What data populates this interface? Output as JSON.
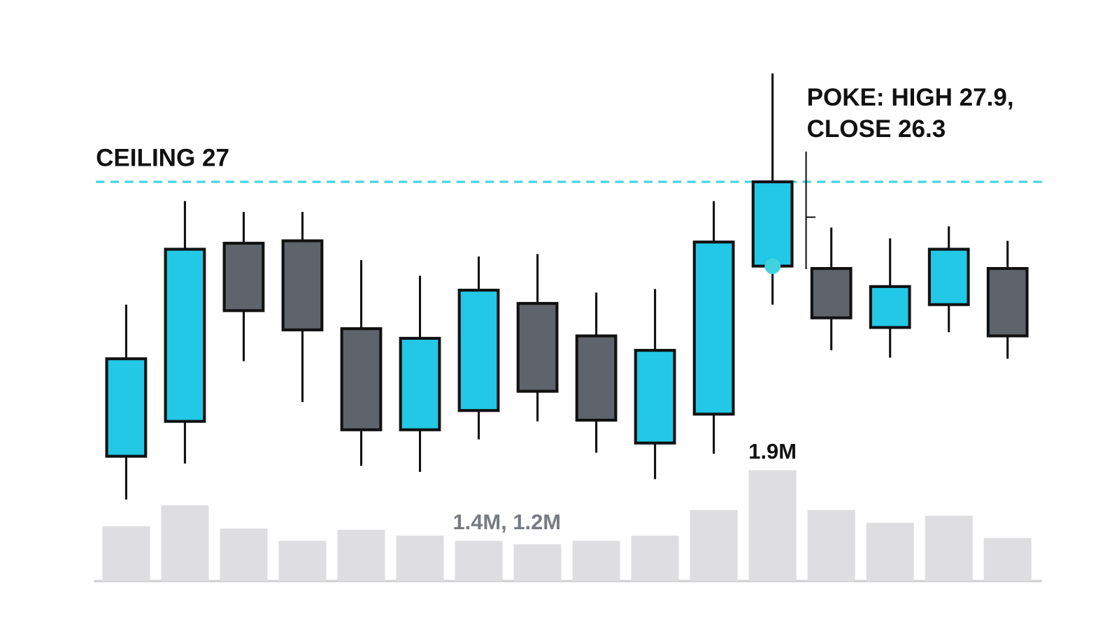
{
  "chart_data": {
    "type": "candlestick",
    "ylim": [
      24,
      28
    ],
    "open": [
      24.72,
      25.01,
      26.49,
      26.51,
      25.78,
      24.94,
      25.1,
      25.99,
      25.72,
      24.83,
      25.07,
      27.0,
      26.28,
      25.79,
      25.98,
      26.28
    ],
    "high": [
      25.98,
      26.84,
      26.75,
      26.75,
      26.35,
      26.22,
      26.38,
      26.4,
      26.08,
      26.11,
      26.84,
      27.9,
      26.62,
      26.53,
      26.63,
      26.51
    ],
    "low": [
      24.36,
      24.66,
      25.51,
      25.17,
      24.64,
      24.59,
      24.86,
      25.01,
      24.75,
      24.53,
      24.74,
      25.98,
      25.6,
      25.54,
      25.75,
      25.53
    ],
    "close": [
      25.53,
      26.44,
      25.93,
      25.77,
      24.94,
      25.7,
      26.1,
      25.26,
      25.02,
      25.6,
      26.5,
      26.3,
      25.87,
      26.13,
      26.44,
      25.72
    ],
    "colors": [
      "#22c8e5",
      "#22c8e5",
      "#5f636b",
      "#5f636b",
      "#5f636b",
      "#22c8e5",
      "#22c8e5",
      "#5f636b",
      "#5f636b",
      "#22c8e5",
      "#22c8e5",
      "#22c8e5",
      "#5f636b",
      "#22c8e5",
      "#22c8e5",
      "#5f636b"
    ],
    "ceiling": {
      "value": 27,
      "label": "CEILING 27",
      "color": "#3fd3e0"
    },
    "annotation": {
      "lines": [
        "POKE: HIGH 27.9,",
        "CLOSE 26.3"
      ],
      "candle": 11
    },
    "volume": {
      "ylim": [
        0,
        2
      ],
      "color": "#dedee0",
      "values": [
        0.94,
        1.3,
        0.9,
        0.69,
        0.88,
        0.78,
        0.69,
        0.63,
        0.69,
        0.78,
        1.22,
        1.9,
        1.22,
        1.0,
        1.12,
        0.74
      ],
      "value_labels": [
        null,
        null,
        null,
        null,
        null,
        null,
        null,
        null,
        null,
        null,
        null,
        "1.9M",
        null,
        null,
        null,
        null
      ],
      "note": "1.4M, 1.2M"
    }
  }
}
